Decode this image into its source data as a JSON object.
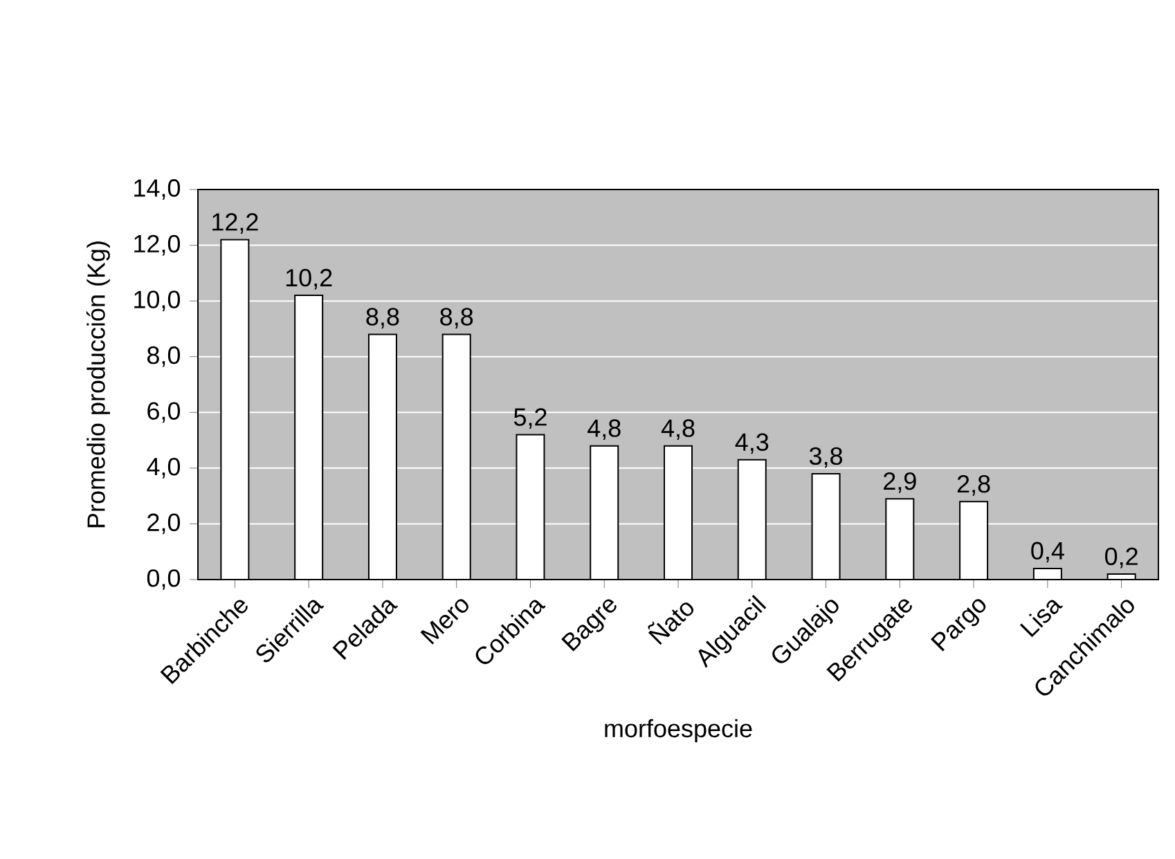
{
  "chart_data": {
    "type": "bar",
    "xlabel": "morfoespecie",
    "ylabel": "Promedio producción  (Kg)",
    "categories": [
      "Barbinche",
      "Sierrilla",
      "Pelada",
      "Mero",
      "Corbina",
      "Bagre",
      "Ñato",
      "Alguacil",
      "Gualajo",
      "Berrugate",
      "Pargo",
      "Lisa",
      "Canchimalo"
    ],
    "values": [
      12.2,
      10.2,
      8.8,
      8.8,
      5.2,
      4.8,
      4.8,
      4.3,
      3.8,
      2.9,
      2.8,
      0.4,
      0.2
    ],
    "value_labels": [
      "12,2",
      "10,2",
      "8,8",
      "8,8",
      "5,2",
      "4,8",
      "4,8",
      "4,3",
      "3,8",
      "2,9",
      "2,8",
      "0,4",
      "0,2"
    ],
    "color": "#ffffff",
    "ylim": [
      0,
      14
    ],
    "yticks": [
      {
        "value": 0,
        "label": "0,0"
      },
      {
        "value": 2,
        "label": "2,0"
      },
      {
        "value": 4,
        "label": "4,0"
      },
      {
        "value": 6,
        "label": "6,0"
      },
      {
        "value": 8,
        "label": "8,0"
      },
      {
        "value": 10,
        "label": "10,0"
      },
      {
        "value": 12,
        "label": "12,0"
      },
      {
        "value": 14,
        "label": "14,0"
      }
    ],
    "grid": "y"
  }
}
